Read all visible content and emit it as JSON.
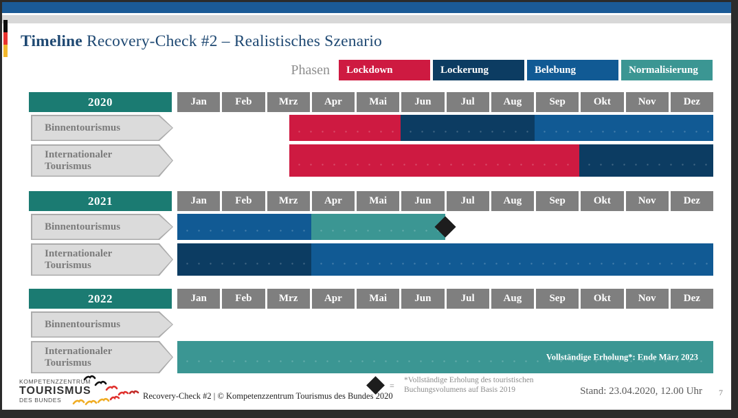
{
  "header": {
    "title_bold": "Timeline",
    "title_rest": " Recovery-Check #2 – Realistisches Szenario"
  },
  "legend": {
    "label": "Phasen",
    "items": [
      {
        "label": "Lockdown",
        "color": "#CE1A41"
      },
      {
        "label": "Lockerung",
        "color": "#0C3C62"
      },
      {
        "label": "Belebung",
        "color": "#115A94"
      },
      {
        "label": "Normalisierung",
        "color": "#3B9693"
      }
    ]
  },
  "chart_data": {
    "type": "gantt-timeline",
    "title": "Timeline Recovery-Check #2 – Realistisches Szenario",
    "unit": "months (0 = start of Jan, 12 = end of Dez)",
    "months": [
      "Jan",
      "Feb",
      "Mrz",
      "Apr",
      "Mai",
      "Jun",
      "Jul",
      "Aug",
      "Sep",
      "Okt",
      "Nov",
      "Dez"
    ],
    "phases": {
      "lockdown": {
        "label": "Lockdown",
        "color": "#CE1A41"
      },
      "lockerung": {
        "label": "Lockerung",
        "color": "#0C3C62"
      },
      "belebung": {
        "label": "Belebung",
        "color": "#115A94"
      },
      "normalisierung": {
        "label": "Normalisierung",
        "color": "#3B9693"
      }
    },
    "year_box_color": "#1B7B72",
    "month_header_color": "#7F7F7F",
    "sections": [
      {
        "year": "2020",
        "rows": [
          {
            "label": "Binnentourismus",
            "segments": [
              {
                "phase": "lockdown",
                "start": 2.5,
                "end": 5
              },
              {
                "phase": "lockerung",
                "start": 5,
                "end": 8
              },
              {
                "phase": "belebung",
                "start": 8,
                "end": 12
              }
            ]
          },
          {
            "label": "Internationaler Tourismus",
            "segments": [
              {
                "phase": "lockdown",
                "start": 2.5,
                "end": 9
              },
              {
                "phase": "lockerung",
                "start": 9,
                "end": 12
              }
            ]
          }
        ]
      },
      {
        "year": "2021",
        "rows": [
          {
            "label": "Binnentourismus",
            "segments": [
              {
                "phase": "belebung",
                "start": 0,
                "end": 3
              },
              {
                "phase": "normalisierung",
                "start": 3,
                "end": 6
              }
            ],
            "marker_at": 6
          },
          {
            "label": "Internationaler Tourismus",
            "segments": [
              {
                "phase": "lockerung",
                "start": 0,
                "end": 3
              },
              {
                "phase": "belebung",
                "start": 3,
                "end": 12
              }
            ]
          }
        ]
      },
      {
        "year": "2022",
        "rows": [
          {
            "label": "Binnentourismus",
            "segments": []
          },
          {
            "label": "Internationaler Tourismus",
            "segments": [
              {
                "phase": "normalisierung",
                "start": 0,
                "end": 12,
                "text": "Vollständige Erholung*: Ende März 2023"
              }
            ]
          }
        ]
      }
    ]
  },
  "footer": {
    "logo_line1": "KOMPETENZZENTRUM",
    "logo_line2": "TOURISMUS",
    "logo_line3": "DES BUNDES",
    "copyright": "Recovery-Check #2 | © Kompetenzzentrum Tourismus des Bundes 2020",
    "marker_equals": "=",
    "footnote_line1": "*Vollständige Erholung des touristischen",
    "footnote_line2": "Buchungsvolumens auf Basis 2019",
    "stand": "Stand: 23.04.2020, 12.00 Uhr",
    "page_number": "7"
  }
}
